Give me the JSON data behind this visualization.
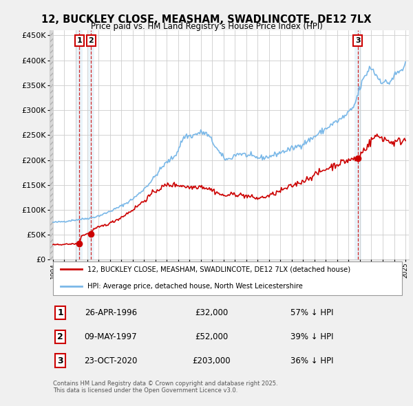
{
  "title": "12, BUCKLEY CLOSE, MEASHAM, SWADLINCOTE, DE12 7LX",
  "subtitle": "Price paid vs. HM Land Registry's House Price Index (HPI)",
  "background_color": "#f0f0f0",
  "plot_bg_color": "#ffffff",
  "ylim": [
    0,
    460000
  ],
  "yticks": [
    0,
    50000,
    100000,
    150000,
    200000,
    250000,
    300000,
    350000,
    400000,
    450000
  ],
  "legend_label_red": "12, BUCKLEY CLOSE, MEASHAM, SWADLINCOTE, DE12 7LX (detached house)",
  "legend_label_blue": "HPI: Average price, detached house, North West Leicestershire",
  "footnote": "Contains HM Land Registry data © Crown copyright and database right 2025.\nThis data is licensed under the Open Government Licence v3.0.",
  "transactions": [
    {
      "num": 1,
      "date": "26-APR-1996",
      "price": 32000,
      "pct": "57% ↓ HPI",
      "year": 1996.32
    },
    {
      "num": 2,
      "date": "09-MAY-1997",
      "price": 52000,
      "pct": "39% ↓ HPI",
      "year": 1997.36
    },
    {
      "num": 3,
      "date": "23-OCT-2020",
      "price": 203000,
      "pct": "36% ↓ HPI",
      "year": 2020.81
    }
  ],
  "hpi_color": "#7ab8e8",
  "price_color": "#cc0000",
  "xmin": 1993.7,
  "xmax": 2025.3
}
